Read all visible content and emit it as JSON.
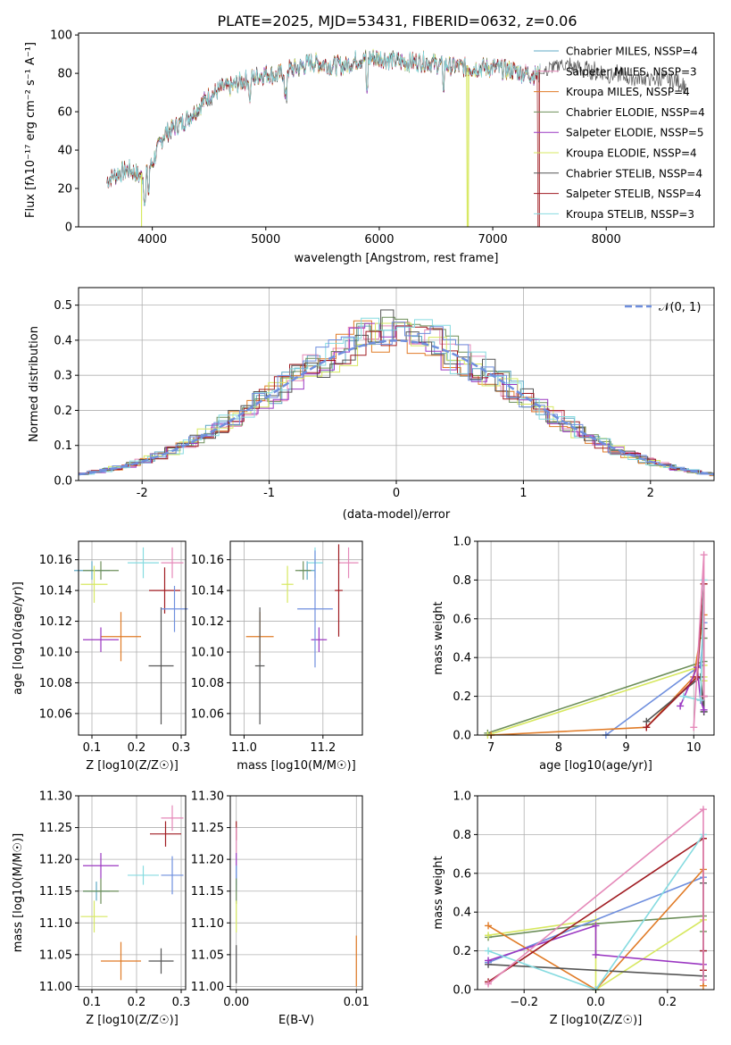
{
  "title": "PLATE=2025, MJD=53431, FIBERID=0632, z=0.06",
  "colors": {
    "chabrier_miles": "#5fa9c4",
    "salpeter_miles": "#e589b9",
    "kroupa_miles": "#e07b27",
    "chabrier_elodie": "#6d8f5a",
    "salpeter_elodie": "#9b38c2",
    "kroupa_elodie": "#d7e860",
    "chabrier_stelib": "#555555",
    "salpeter_stelib": "#a01c22",
    "kroupa_stelib": "#86dbe0",
    "normal": "#6f8fde"
  },
  "chart_data": [
    {
      "id": "spectrum",
      "type": "line",
      "xlabel": "wavelength [Angstrom, rest frame]",
      "ylabel": "Flux [fλ10⁻¹⁷ erg cm⁻² s⁻¹ A⁻¹]",
      "xlim": [
        3350,
        8950
      ],
      "ylim": [
        0,
        101
      ],
      "xticks": [
        4000,
        5000,
        6000,
        7000,
        8000
      ],
      "yticks": [
        0,
        20,
        40,
        60,
        80,
        100
      ],
      "legend_position": "top-right",
      "continuum": {
        "x": [
          3600,
          3700,
          3800,
          3900,
          4000,
          4100,
          4200,
          4300,
          4400,
          4500,
          4600,
          4700,
          4800,
          4900,
          5000,
          5100,
          5200,
          5300,
          5400,
          5500,
          5600,
          5700,
          5800,
          5900,
          6000,
          6200,
          6400,
          6600,
          6800,
          7000,
          7200,
          7400,
          7600,
          7800,
          8000,
          8200,
          8400,
          8600,
          8700
        ],
        "y": [
          24,
          28,
          30,
          26,
          33,
          48,
          52,
          56,
          62,
          68,
          72,
          73,
          76,
          78,
          80,
          79,
          82,
          83,
          86,
          85,
          84,
          84,
          87,
          88,
          88,
          86,
          86,
          84,
          83,
          83,
          81,
          79,
          85,
          82,
          80,
          78,
          77,
          76,
          74
        ]
      },
      "series": [
        {
          "name": "Chabrier MILES, NSSP=4",
          "color_key": "chabrier_miles"
        },
        {
          "name": "Salpeter MILES, NSSP=3",
          "color_key": "salpeter_miles"
        },
        {
          "name": "Kroupa MILES, NSSP=4",
          "color_key": "kroupa_miles"
        },
        {
          "name": "Chabrier ELODIE, NSSP=4",
          "color_key": "chabrier_elodie"
        },
        {
          "name": "Salpeter ELODIE, NSSP=5",
          "color_key": "salpeter_elodie"
        },
        {
          "name": "Kroupa ELODIE, NSSP=4",
          "color_key": "kroupa_elodie"
        },
        {
          "name": "Chabrier STELIB, NSSP=4",
          "color_key": "chabrier_stelib"
        },
        {
          "name": "Salpeter STELIB, NSSP=4",
          "color_key": "salpeter_stelib"
        },
        {
          "name": "Kroupa STELIB, NSSP=3",
          "color_key": "kroupa_stelib"
        }
      ]
    },
    {
      "id": "residuals",
      "type": "line",
      "xlabel": "(data-model)/error",
      "ylabel": "Normed distribution",
      "xlim": [
        -2.5,
        2.5
      ],
      "ylim": [
        0,
        0.55
      ],
      "xticks": [
        -2,
        -1,
        0,
        1,
        2
      ],
      "yticks": [
        0.0,
        0.1,
        0.2,
        0.3,
        0.4,
        0.5
      ],
      "grid": true,
      "legend_position": "top-right",
      "legend": "𝒩(0, 1)"
    },
    {
      "id": "age_vs_z",
      "type": "scatter",
      "xlabel": "Z [log10(Z/Z☉)]",
      "ylabel": "age  [log10(age/yr)]",
      "xlim": [
        0.07,
        0.31
      ],
      "ylim": [
        10.046,
        10.172
      ],
      "xticks": [
        0.1,
        0.2,
        0.3
      ],
      "yticks": [
        10.06,
        10.08,
        10.1,
        10.12,
        10.14,
        10.16
      ],
      "grid": true,
      "points": [
        {
          "c": "chabrier_miles",
          "x": 0.1,
          "y": 10.153,
          "xe": 0.04,
          "ye": 0.006
        },
        {
          "c": "salpeter_miles",
          "x": 0.28,
          "y": 10.158,
          "xe": 0.025,
          "ye": 0.01
        },
        {
          "c": "kroupa_miles",
          "x": 0.165,
          "y": 10.11,
          "xe": 0.045,
          "ye": 0.016
        },
        {
          "c": "chabrier_elodie",
          "x": 0.12,
          "y": 10.153,
          "xe": 0.04,
          "ye": 0.006
        },
        {
          "c": "salpeter_elodie",
          "x": 0.12,
          "y": 10.108,
          "xe": 0.04,
          "ye": 0.008
        },
        {
          "c": "kroupa_elodie",
          "x": 0.105,
          "y": 10.144,
          "xe": 0.03,
          "ye": 0.012
        },
        {
          "c": "chabrier_stelib",
          "x": 0.255,
          "y": 10.091,
          "xe": 0.028,
          "ye": 0.038
        },
        {
          "c": "salpeter_stelib",
          "x": 0.263,
          "y": 10.14,
          "xe": 0.035,
          "ye": 0.015
        },
        {
          "c": "kroupa_stelib",
          "x": 0.215,
          "y": 10.158,
          "xe": 0.035,
          "ye": 0.01
        },
        {
          "c": "normal",
          "x": 0.285,
          "y": 10.128,
          "xe": 0.03,
          "ye": 0.015
        }
      ]
    },
    {
      "id": "age_vs_mass",
      "type": "scatter",
      "xlabel": "mass [log10(M/M☉)]",
      "ylabel": "",
      "xlim": [
        10.965,
        11.3
      ],
      "ylim": [
        10.046,
        10.172
      ],
      "xticks": [
        11.0,
        11.2
      ],
      "yticks": [
        10.06,
        10.08,
        10.1,
        10.12,
        10.14,
        10.16
      ],
      "grid": true,
      "points": [
        {
          "c": "chabrier_miles",
          "x": 11.16,
          "y": 10.153,
          "xe": 0.02,
          "ye": 0.006
        },
        {
          "c": "salpeter_miles",
          "x": 11.265,
          "y": 10.158,
          "xe": 0.025,
          "ye": 0.01
        },
        {
          "c": "kroupa_miles",
          "x": 11.04,
          "y": 10.11,
          "xe": 0.035,
          "ye": 0.016
        },
        {
          "c": "chabrier_elodie",
          "x": 11.15,
          "y": 10.153,
          "xe": 0.02,
          "ye": 0.006
        },
        {
          "c": "salpeter_elodie",
          "x": 11.19,
          "y": 10.108,
          "xe": 0.02,
          "ye": 0.008
        },
        {
          "c": "kroupa_elodie",
          "x": 11.11,
          "y": 10.144,
          "xe": 0.015,
          "ye": 0.012
        },
        {
          "c": "chabrier_stelib",
          "x": 11.04,
          "y": 10.091,
          "xe": 0.012,
          "ye": 0.038
        },
        {
          "c": "salpeter_stelib",
          "x": 11.24,
          "y": 10.14,
          "xe": 0.01,
          "ye": 0.03
        },
        {
          "c": "kroupa_stelib",
          "x": 11.18,
          "y": 10.158,
          "xe": 0.02,
          "ye": 0.01
        },
        {
          "c": "normal",
          "x": 11.18,
          "y": 10.128,
          "xe": 0.045,
          "ye": 0.038
        }
      ]
    },
    {
      "id": "weight_vs_age",
      "type": "line",
      "xlabel": "age  [log10(age/yr)]",
      "ylabel": "mass weight",
      "xlim": [
        6.8,
        10.3
      ],
      "ylim": [
        0,
        1
      ],
      "xticks": [
        7,
        8,
        9,
        10
      ],
      "yticks": [
        0.0,
        0.2,
        0.4,
        0.6,
        0.8,
        1.0
      ],
      "grid": true,
      "series": [
        {
          "c": "chabrier_elodie",
          "x": [
            6.95,
            10.15,
            10.15,
            10.15
          ],
          "y": [
            0.01,
            0.38,
            0.5,
            0.12
          ]
        },
        {
          "c": "kroupa_elodie",
          "x": [
            6.95,
            10.15,
            10.15,
            10.15
          ],
          "y": [
            0.0,
            0.36,
            0.3,
            0.28
          ]
        },
        {
          "c": "normal",
          "x": [
            8.7,
            10.1,
            10.15,
            10.15
          ],
          "y": [
            0.0,
            0.36,
            0.58,
            0.2
          ]
        },
        {
          "c": "kroupa_miles",
          "x": [
            7.0,
            9.3,
            10.0,
            10.15
          ],
          "y": [
            0.0,
            0.04,
            0.3,
            0.62
          ]
        },
        {
          "c": "chabrier_stelib",
          "x": [
            9.3,
            10.1,
            10.15,
            10.15
          ],
          "y": [
            0.07,
            0.3,
            0.12,
            0.55
          ]
        },
        {
          "c": "salpeter_elodie",
          "x": [
            9.8,
            10.05,
            10.1,
            10.15
          ],
          "y": [
            0.15,
            0.35,
            0.18,
            0.13
          ]
        },
        {
          "c": "salpeter_stelib",
          "x": [
            9.3,
            10.05,
            10.15,
            10.15
          ],
          "y": [
            0.04,
            0.3,
            0.78,
            0.2
          ]
        },
        {
          "c": "kroupa_stelib",
          "x": [
            9.85,
            10.1,
            10.15
          ],
          "y": [
            0.2,
            0.18,
            0.8
          ]
        },
        {
          "c": "salpeter_miles",
          "x": [
            10.0,
            10.15,
            10.15
          ],
          "y": [
            0.04,
            0.93,
            0.2
          ]
        }
      ]
    },
    {
      "id": "mass_vs_z",
      "type": "scatter",
      "xlabel": "Z [log10(Z/Z☉)]",
      "ylabel": "mass [log10(M/M☉)]",
      "xlim": [
        0.07,
        0.31
      ],
      "ylim": [
        10.995,
        11.3
      ],
      "xticks": [
        0.1,
        0.2,
        0.3
      ],
      "yticks": [
        11.0,
        11.05,
        11.1,
        11.15,
        11.2,
        11.25,
        11.3
      ],
      "grid": true,
      "points": [
        {
          "c": "chabrier_miles",
          "x": 0.11,
          "y": 11.15,
          "xe": 0.03,
          "ye": 0.015
        },
        {
          "c": "salpeter_miles",
          "x": 0.28,
          "y": 11.265,
          "xe": 0.025,
          "ye": 0.02
        },
        {
          "c": "kroupa_miles",
          "x": 0.165,
          "y": 11.04,
          "xe": 0.045,
          "ye": 0.03
        },
        {
          "c": "chabrier_elodie",
          "x": 0.12,
          "y": 11.15,
          "xe": 0.04,
          "ye": 0.02
        },
        {
          "c": "salpeter_elodie",
          "x": 0.12,
          "y": 11.19,
          "xe": 0.04,
          "ye": 0.02
        },
        {
          "c": "kroupa_elodie",
          "x": 0.105,
          "y": 11.11,
          "xe": 0.03,
          "ye": 0.025
        },
        {
          "c": "chabrier_stelib",
          "x": 0.255,
          "y": 11.04,
          "xe": 0.028,
          "ye": 0.02
        },
        {
          "c": "salpeter_stelib",
          "x": 0.265,
          "y": 11.24,
          "xe": 0.035,
          "ye": 0.02
        },
        {
          "c": "kroupa_stelib",
          "x": 0.215,
          "y": 11.175,
          "xe": 0.035,
          "ye": 0.015
        },
        {
          "c": "normal",
          "x": 0.28,
          "y": 11.175,
          "xe": 0.025,
          "ye": 0.03
        }
      ]
    },
    {
      "id": "mass_vs_ebv",
      "type": "scatter",
      "xlabel": "E(B-V)",
      "ylabel": "",
      "xlim": [
        -0.0005,
        0.0105
      ],
      "ylim": [
        10.995,
        11.3
      ],
      "xticks": [
        0.0,
        0.01
      ],
      "xtick_labels": [
        "0.00",
        "0.01"
      ],
      "yticks": [
        11.0,
        11.05,
        11.1,
        11.15,
        11.2,
        11.25,
        11.3
      ],
      "grid": true,
      "points": [
        {
          "c": "salpeter_stelib",
          "x": 0.0,
          "y": 11.245,
          "xe": 0.0,
          "ye": 0.015
        },
        {
          "c": "salpeter_miles",
          "x": 0.0,
          "y": 11.23,
          "xe": 0.0,
          "ye": 0.02
        },
        {
          "c": "salpeter_elodie",
          "x": 0.0,
          "y": 11.19,
          "xe": 0.0,
          "ye": 0.02
        },
        {
          "c": "kroupa_stelib",
          "x": 0.0,
          "y": 11.175,
          "xe": 0.0,
          "ye": 0.015
        },
        {
          "c": "normal",
          "x": 0.0,
          "y": 11.17,
          "xe": 0.0,
          "ye": 0.02
        },
        {
          "c": "chabrier_elodie",
          "x": 0.0,
          "y": 11.15,
          "xe": 0.0,
          "ye": 0.02
        },
        {
          "c": "kroupa_elodie",
          "x": 0.0,
          "y": 11.11,
          "xe": 0.0,
          "ye": 0.025
        },
        {
          "c": "chabrier_stelib",
          "x": 0.0,
          "y": 11.035,
          "xe": 0.0,
          "ye": 0.03
        },
        {
          "c": "kroupa_miles",
          "x": 0.01,
          "y": 11.04,
          "xe": 0.0,
          "ye": 0.04
        }
      ]
    },
    {
      "id": "weight_vs_z",
      "type": "line",
      "xlabel": "Z [log10(Z/Z☉)]",
      "ylabel": "mass weight",
      "xlim": [
        -0.33,
        0.33
      ],
      "ylim": [
        0,
        1
      ],
      "xticks": [
        -0.2,
        0.0,
        0.2
      ],
      "yticks": [
        0.0,
        0.2,
        0.4,
        0.6,
        0.8,
        1.0
      ],
      "grid": true,
      "series": [
        {
          "c": "chabrier_elodie",
          "x": [
            -0.3,
            0.0,
            0.3,
            0.3
          ],
          "y": [
            0.27,
            0.34,
            0.38,
            0.3
          ]
        },
        {
          "c": "kroupa_elodie",
          "x": [
            -0.3,
            0.0,
            0.0,
            0.3
          ],
          "y": [
            0.28,
            0.36,
            0.0,
            0.36
          ]
        },
        {
          "c": "normal",
          "x": [
            -0.3,
            0.3,
            0.3
          ],
          "y": [
            0.14,
            0.58,
            0.2
          ]
        },
        {
          "c": "kroupa_miles",
          "x": [
            -0.3,
            0.0,
            0.3,
            0.3
          ],
          "y": [
            0.33,
            0.0,
            0.62,
            0.02
          ]
        },
        {
          "c": "chabrier_stelib",
          "x": [
            -0.3,
            0.3,
            0.3
          ],
          "y": [
            0.13,
            0.07,
            0.55
          ]
        },
        {
          "c": "salpeter_elodie",
          "x": [
            -0.3,
            0.0,
            0.0,
            0.3
          ],
          "y": [
            0.15,
            0.33,
            0.18,
            0.13
          ]
        },
        {
          "c": "salpeter_stelib",
          "x": [
            -0.3,
            0.3,
            0.3,
            0.3
          ],
          "y": [
            0.04,
            0.78,
            0.2,
            0.1
          ]
        },
        {
          "c": "kroupa_stelib",
          "x": [
            -0.3,
            0.0,
            0.3
          ],
          "y": [
            0.2,
            0.0,
            0.8
          ]
        },
        {
          "c": "salpeter_miles",
          "x": [
            -0.3,
            0.3,
            0.3
          ],
          "y": [
            0.03,
            0.93,
            0.05
          ]
        }
      ]
    }
  ]
}
